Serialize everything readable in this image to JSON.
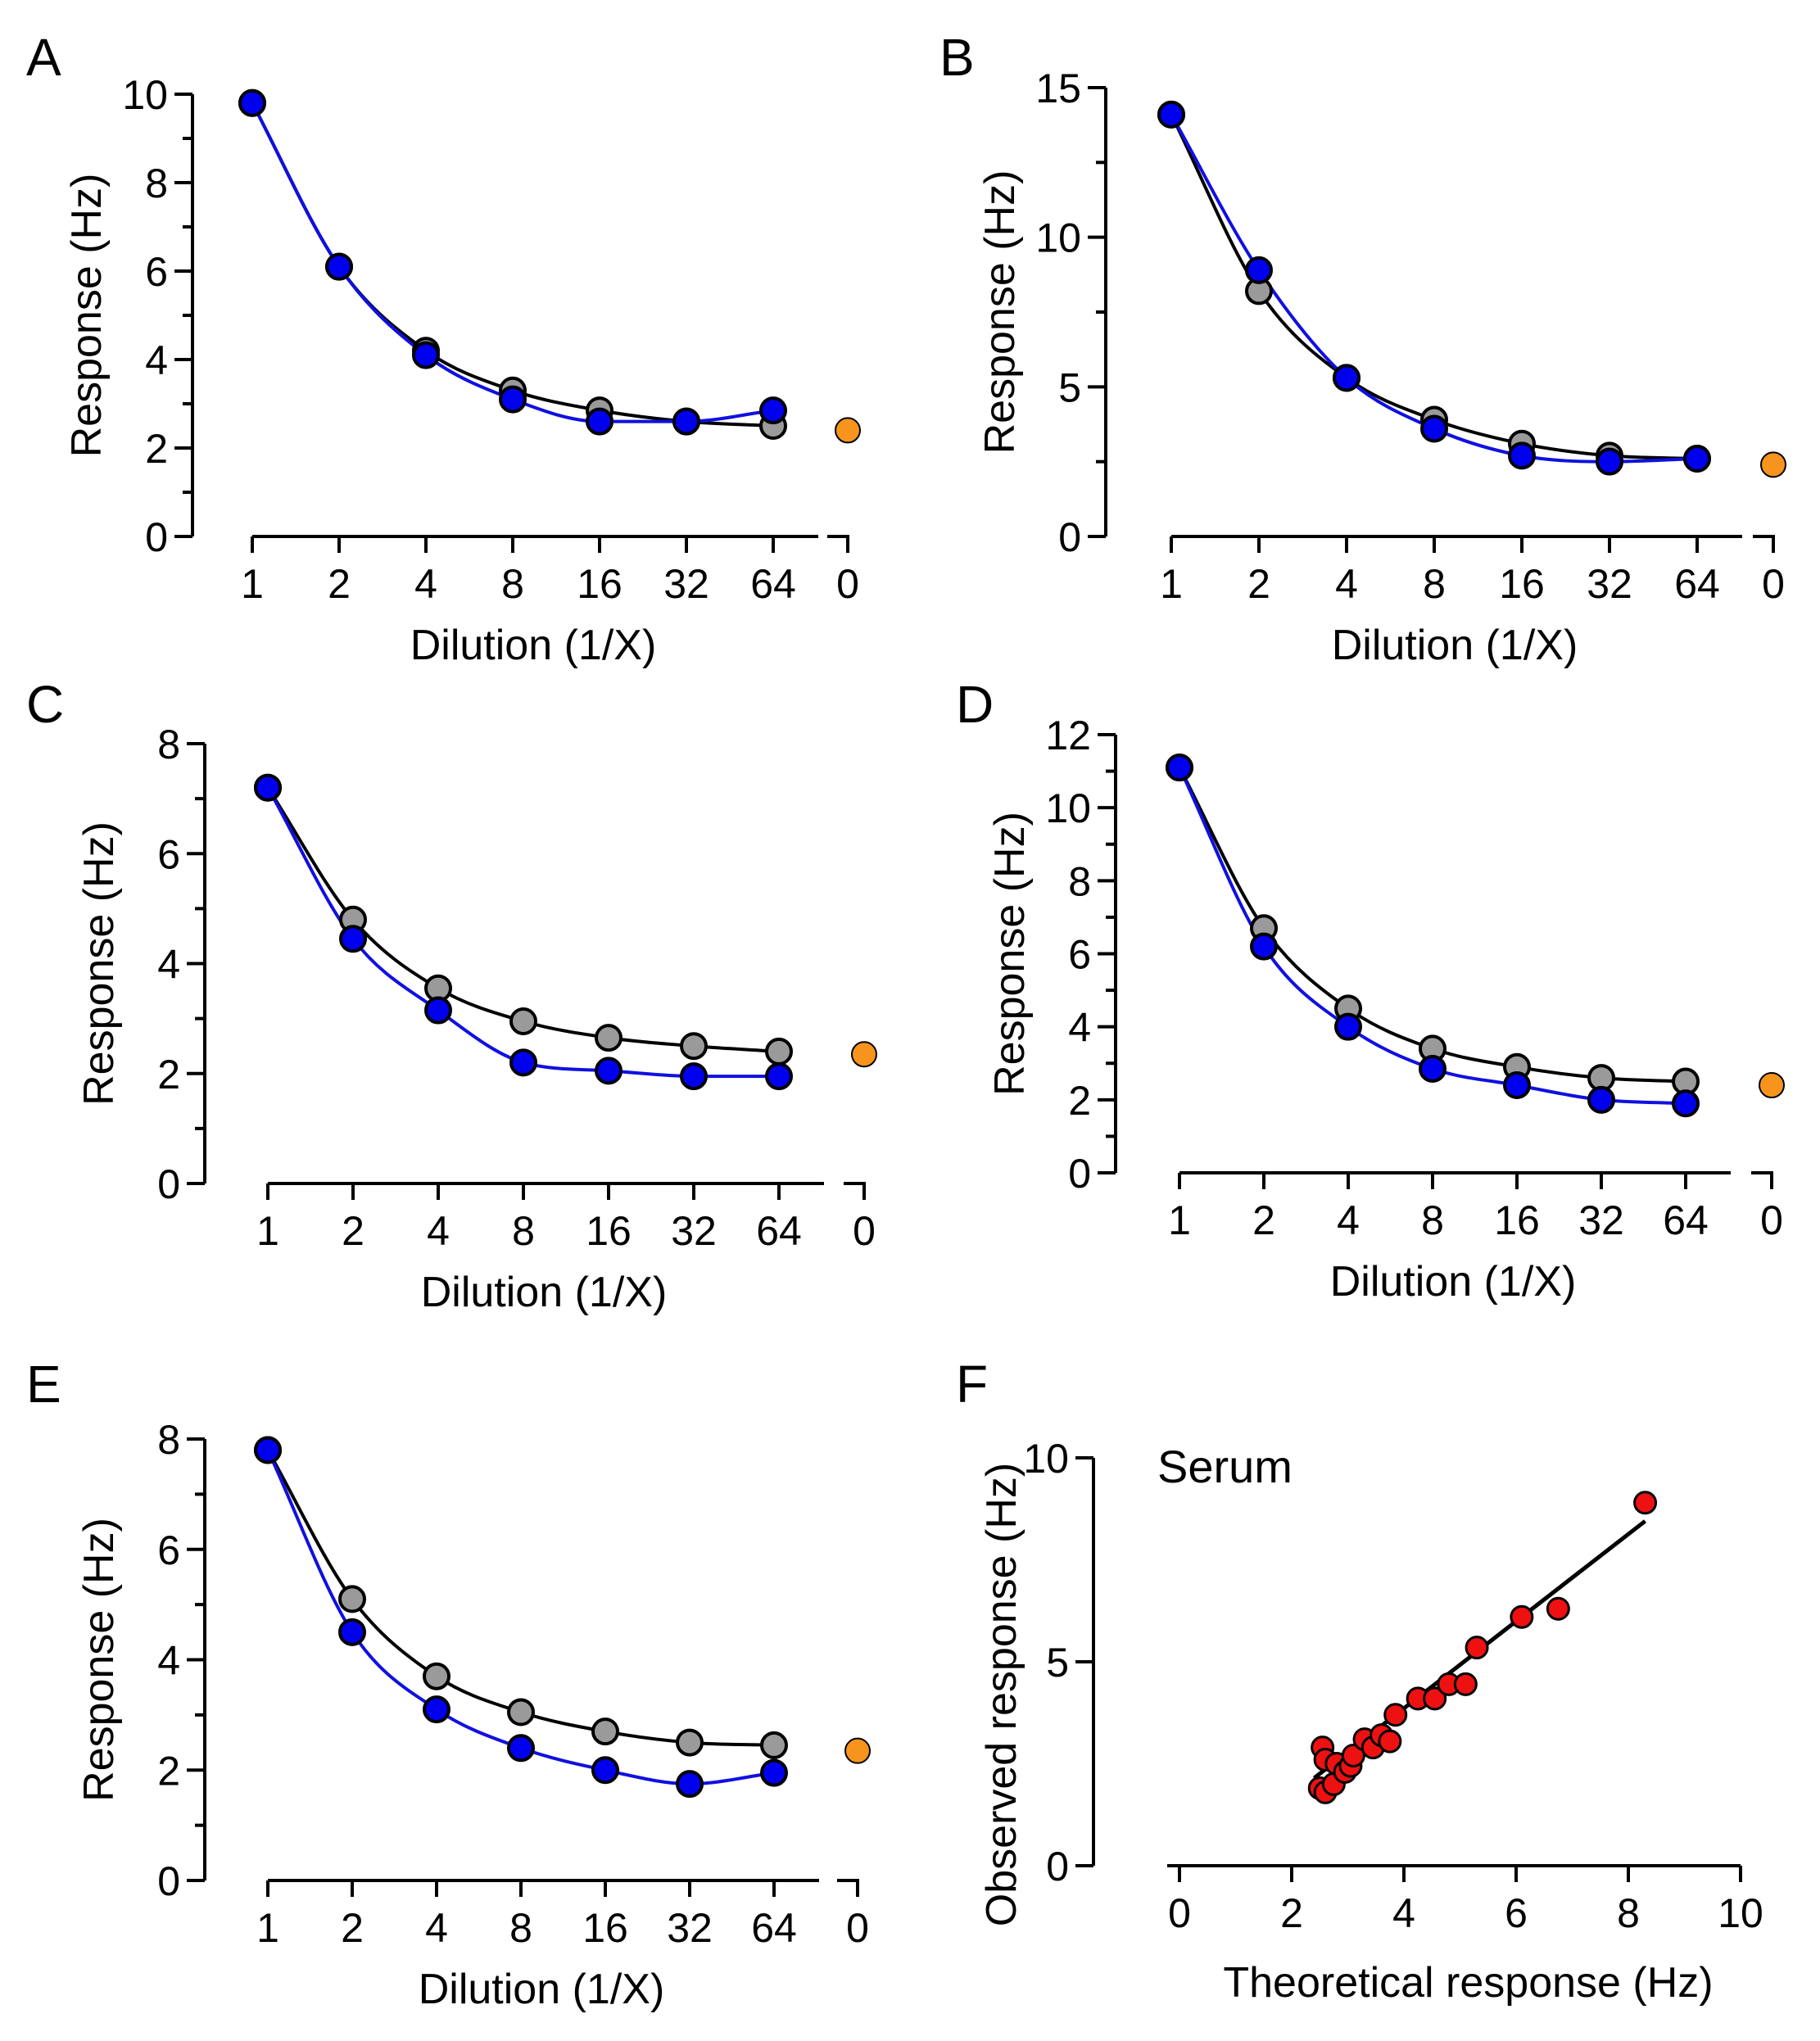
{
  "figure": {
    "colors": {
      "grey_marker": "#9a9a9a",
      "blue_marker": "#0000ee",
      "blue_curve": "#1010e0",
      "black_curve": "#000000",
      "orange_marker": "#f7941d",
      "red_marker": "#ee1111",
      "axis": "#000000"
    }
  },
  "chart_data": [
    {
      "panel": "A",
      "type": "scatter",
      "xlabel": "Dilution (1/X)",
      "ylabel": "Response (Hz)",
      "categories": [
        "1",
        "2",
        "4",
        "8",
        "16",
        "32",
        "64"
      ],
      "control_category": "0",
      "ylim": [
        0,
        10
      ],
      "yticks": [
        "0",
        "2",
        "4",
        "6",
        "8",
        "10"
      ],
      "series": [
        {
          "name": "grey",
          "values": [
            9.8,
            6.1,
            4.2,
            3.3,
            2.85,
            2.6,
            2.5
          ]
        },
        {
          "name": "blue",
          "values": [
            9.8,
            6.1,
            4.1,
            3.1,
            2.6,
            2.6,
            2.85
          ]
        }
      ],
      "control_value": 2.4
    },
    {
      "panel": "B",
      "type": "scatter",
      "xlabel": "Dilution (1/X)",
      "ylabel": "Response (Hz)",
      "categories": [
        "1",
        "2",
        "4",
        "8",
        "16",
        "32",
        "64"
      ],
      "control_category": "0",
      "ylim": [
        0,
        15
      ],
      "yticks": [
        "0",
        "5",
        "10",
        "15"
      ],
      "series": [
        {
          "name": "grey",
          "values": [
            14.1,
            8.2,
            5.3,
            3.9,
            3.1,
            2.7,
            2.6
          ]
        },
        {
          "name": "blue",
          "values": [
            14.1,
            8.9,
            5.3,
            3.6,
            2.7,
            2.5,
            2.6
          ]
        }
      ],
      "control_value": 2.4
    },
    {
      "panel": "C",
      "type": "scatter",
      "xlabel": "Dilution (1/X)",
      "ylabel": "Response (Hz)",
      "categories": [
        "1",
        "2",
        "4",
        "8",
        "16",
        "32",
        "64"
      ],
      "control_category": "0",
      "ylim": [
        0,
        8
      ],
      "yticks": [
        "0",
        "2",
        "4",
        "6",
        "8"
      ],
      "series": [
        {
          "name": "grey",
          "values": [
            7.2,
            4.8,
            3.55,
            2.95,
            2.65,
            2.5,
            2.4
          ]
        },
        {
          "name": "blue",
          "values": [
            7.2,
            4.45,
            3.15,
            2.2,
            2.05,
            1.95,
            1.95
          ]
        }
      ],
      "control_value": 2.35
    },
    {
      "panel": "D",
      "type": "scatter",
      "xlabel": "Dilution (1/X)",
      "ylabel": "Response (Hz)",
      "categories": [
        "1",
        "2",
        "4",
        "8",
        "16",
        "32",
        "64"
      ],
      "control_category": "0",
      "ylim": [
        0,
        12
      ],
      "yticks": [
        "0",
        "2",
        "4",
        "6",
        "8",
        "10",
        "12"
      ],
      "series": [
        {
          "name": "grey",
          "values": [
            11.1,
            6.7,
            4.5,
            3.4,
            2.9,
            2.6,
            2.5
          ]
        },
        {
          "name": "blue",
          "values": [
            11.1,
            6.2,
            4.0,
            2.85,
            2.4,
            2.0,
            1.9
          ]
        }
      ],
      "control_value": 2.4
    },
    {
      "panel": "E",
      "type": "scatter",
      "xlabel": "Dilution (1/X)",
      "ylabel": "Response (Hz)",
      "categories": [
        "1",
        "2",
        "4",
        "8",
        "16",
        "32",
        "64"
      ],
      "control_category": "0",
      "ylim": [
        0,
        8
      ],
      "yticks": [
        "0",
        "2",
        "4",
        "6",
        "8"
      ],
      "series": [
        {
          "name": "grey",
          "values": [
            7.8,
            5.1,
            3.7,
            3.05,
            2.7,
            2.5,
            2.45
          ]
        },
        {
          "name": "blue",
          "values": [
            7.8,
            4.5,
            3.1,
            2.4,
            2.0,
            1.75,
            1.95
          ]
        }
      ],
      "control_value": 2.35
    },
    {
      "panel": "F",
      "type": "scatter",
      "annotation": "Serum",
      "xlabel": "Theoretical response (Hz)",
      "ylabel": "Observed response (Hz)",
      "xlim": [
        0,
        10
      ],
      "ylim": [
        0,
        10
      ],
      "xticks": [
        "0",
        "2",
        "4",
        "6",
        "8",
        "10"
      ],
      "yticks": [
        "0",
        "5",
        "10"
      ],
      "points": [
        {
          "x": 2.5,
          "y": 1.9
        },
        {
          "x": 2.55,
          "y": 2.9
        },
        {
          "x": 2.6,
          "y": 1.8
        },
        {
          "x": 2.6,
          "y": 2.6
        },
        {
          "x": 2.75,
          "y": 2.0
        },
        {
          "x": 2.8,
          "y": 2.5
        },
        {
          "x": 2.95,
          "y": 2.3
        },
        {
          "x": 3.05,
          "y": 2.45
        },
        {
          "x": 3.1,
          "y": 2.7
        },
        {
          "x": 3.3,
          "y": 3.1
        },
        {
          "x": 3.45,
          "y": 2.9
        },
        {
          "x": 3.6,
          "y": 3.2
        },
        {
          "x": 3.75,
          "y": 3.05
        },
        {
          "x": 3.85,
          "y": 3.7
        },
        {
          "x": 4.25,
          "y": 4.1
        },
        {
          "x": 4.55,
          "y": 4.1
        },
        {
          "x": 4.8,
          "y": 4.45
        },
        {
          "x": 5.1,
          "y": 4.45
        },
        {
          "x": 5.3,
          "y": 5.35
        },
        {
          "x": 6.1,
          "y": 6.1
        },
        {
          "x": 6.75,
          "y": 6.3
        },
        {
          "x": 8.3,
          "y": 8.9
        }
      ],
      "fit_line": {
        "x": [
          2.4,
          8.3
        ],
        "y": [
          2.15,
          8.45
        ]
      }
    }
  ]
}
